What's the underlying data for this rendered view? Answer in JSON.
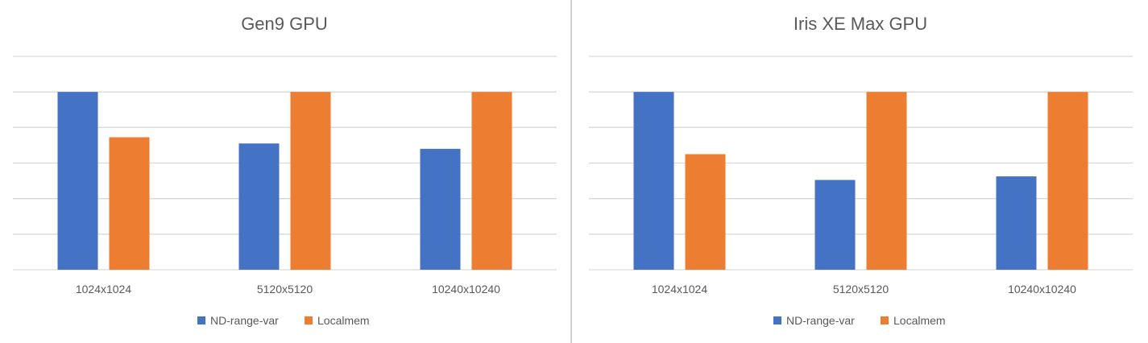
{
  "chart_data": [
    {
      "type": "bar",
      "title": "Gen9 GPU",
      "xlabel": "",
      "ylabel": "",
      "categories": [
        "1024x1024",
        "5120x5120",
        "10240x10240"
      ],
      "series": [
        {
          "name": "ND-range-var",
          "color": "#4472C4",
          "values": [
            1.0,
            0.71,
            0.68
          ]
        },
        {
          "name": "Localmem",
          "color": "#ED7D31",
          "values": [
            0.745,
            1.0,
            1.0
          ]
        }
      ],
      "ylim": [
        0,
        1.2
      ],
      "yticks": [
        0,
        0.2,
        0.4,
        0.6,
        0.8,
        1.0,
        1.2
      ],
      "ytick_labels_shown": false,
      "grid": true,
      "legend": "bottom"
    },
    {
      "type": "bar",
      "title": "Iris XE Max GPU",
      "xlabel": "",
      "ylabel": "",
      "categories": [
        "1024x1024",
        "5120x5120",
        "10240x10240"
      ],
      "series": [
        {
          "name": "ND-range-var",
          "color": "#4472C4",
          "values": [
            1.0,
            0.505,
            0.525
          ]
        },
        {
          "name": "Localmem",
          "color": "#ED7D31",
          "values": [
            0.65,
            1.0,
            1.0
          ]
        }
      ],
      "ylim": [
        0,
        1.2
      ],
      "yticks": [
        0,
        0.2,
        0.4,
        0.6,
        0.8,
        1.0,
        1.2
      ],
      "ytick_labels_shown": false,
      "grid": true,
      "legend": "bottom"
    }
  ]
}
